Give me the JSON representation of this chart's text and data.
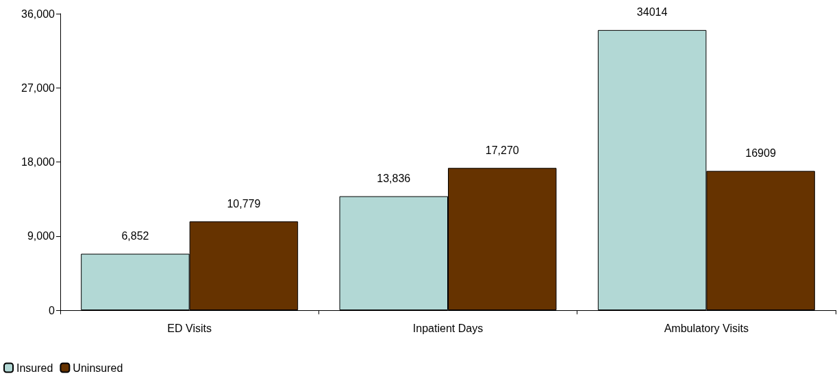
{
  "chart_data": {
    "type": "bar",
    "categories": [
      "ED Visits",
      "Inpatient Days",
      "Ambulatory Visits"
    ],
    "series": [
      {
        "name": "Insured",
        "color": "#b2d8d5",
        "values": [
          6852,
          13836,
          34014
        ],
        "value_labels": [
          "6,852",
          "13,836",
          "34014"
        ]
      },
      {
        "name": "Uninsured",
        "color": "#663300",
        "values": [
          10779,
          17270,
          16909
        ],
        "value_labels": [
          "10,779",
          "17,270",
          "16909"
        ]
      }
    ],
    "ylim": [
      0,
      36000
    ],
    "yticks": [
      {
        "value": 0,
        "label": "0"
      },
      {
        "value": 9000,
        "label": "9,000"
      },
      {
        "value": 18000,
        "label": "18,000"
      },
      {
        "value": 27000,
        "label": "27,000"
      },
      {
        "value": 36000,
        "label": "36,000"
      }
    ],
    "grid": false,
    "legend": "bottom left"
  }
}
